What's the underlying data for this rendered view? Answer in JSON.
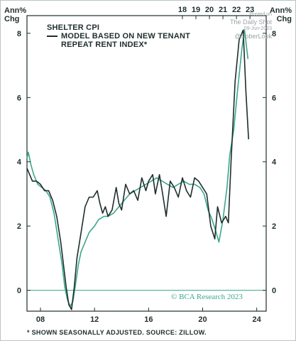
{
  "chart_data": {
    "type": "line",
    "unit_label_left": "Ann%\nChg",
    "unit_label_right": "Ann%\nChg",
    "x_range": [
      2007.0,
      2024.7
    ],
    "ylim": [
      -0.65,
      8.55
    ],
    "y_ticks": [
      0,
      2,
      4,
      6,
      8
    ],
    "x_ticks_top": [
      {
        "value": 2018.5,
        "label": "18"
      },
      {
        "value": 2019.5,
        "label": "19"
      },
      {
        "value": 2020.5,
        "label": "20"
      },
      {
        "value": 2021.5,
        "label": "21"
      },
      {
        "value": 2022.5,
        "label": "22"
      },
      {
        "value": 2023.5,
        "label": "23"
      }
    ],
    "x_ticks_bottom": [
      {
        "value": 2008,
        "label": "08"
      },
      {
        "value": 2012,
        "label": "12"
      },
      {
        "value": 2016,
        "label": "16"
      },
      {
        "value": 2020,
        "label": "20"
      },
      {
        "value": 2024,
        "label": "24"
      }
    ],
    "grid": false,
    "legend": {
      "line_entry": "MODEL BASED ON NEW TENANT",
      "line_entry_cont": "REPEAT RENT INDEX*",
      "text_entry": "SHELTER CPI"
    },
    "series": [
      {
        "name": "SHELTER CPI",
        "color": "#3aa88a",
        "axis": "bottom",
        "points": [
          [
            2007.0,
            4.1
          ],
          [
            2007.1,
            4.3
          ],
          [
            2007.3,
            3.9
          ],
          [
            2007.5,
            3.6
          ],
          [
            2007.8,
            3.3
          ],
          [
            2008.1,
            3.2
          ],
          [
            2008.4,
            3.1
          ],
          [
            2008.7,
            2.9
          ],
          [
            2009.0,
            2.4
          ],
          [
            2009.3,
            1.6
          ],
          [
            2009.6,
            0.8
          ],
          [
            2009.8,
            0.1
          ],
          [
            2010.0,
            -0.3
          ],
          [
            2010.2,
            -0.5
          ],
          [
            2010.4,
            -0.35
          ],
          [
            2010.6,
            0.2
          ],
          [
            2010.8,
            0.8
          ],
          [
            2011.0,
            1.2
          ],
          [
            2011.3,
            1.5
          ],
          [
            2011.6,
            1.8
          ],
          [
            2012.0,
            2.0
          ],
          [
            2012.3,
            2.2
          ],
          [
            2012.7,
            2.3
          ],
          [
            2013.0,
            2.3
          ],
          [
            2013.4,
            2.4
          ],
          [
            2013.8,
            2.6
          ],
          [
            2014.2,
            2.8
          ],
          [
            2014.6,
            3.0
          ],
          [
            2015.0,
            3.1
          ],
          [
            2015.4,
            3.2
          ],
          [
            2015.8,
            3.3
          ],
          [
            2016.2,
            3.4
          ],
          [
            2016.6,
            3.5
          ],
          [
            2017.0,
            3.4
          ],
          [
            2017.4,
            3.3
          ],
          [
            2017.8,
            3.2
          ],
          [
            2018.2,
            3.3
          ],
          [
            2018.6,
            3.4
          ],
          [
            2019.0,
            3.3
          ],
          [
            2019.4,
            3.3
          ],
          [
            2019.8,
            3.2
          ],
          [
            2020.1,
            3.0
          ],
          [
            2020.4,
            2.5
          ],
          [
            2020.7,
            2.2
          ],
          [
            2021.0,
            1.8
          ],
          [
            2021.2,
            1.5
          ],
          [
            2021.5,
            2.2
          ],
          [
            2021.8,
            3.2
          ],
          [
            2022.0,
            4.2
          ],
          [
            2022.3,
            5.0
          ],
          [
            2022.6,
            6.3
          ],
          [
            2022.9,
            7.5
          ],
          [
            2023.1,
            8.1
          ],
          [
            2023.35,
            7.2
          ]
        ]
      },
      {
        "name": "MODEL BASED ON NEW TENANT REPEAT RENT INDEX*",
        "color": "#1f2d2d",
        "axis": "bottom",
        "points": [
          [
            2007.0,
            3.8
          ],
          [
            2007.2,
            3.6
          ],
          [
            2007.4,
            3.4
          ],
          [
            2007.7,
            3.4
          ],
          [
            2008.0,
            3.3
          ],
          [
            2008.3,
            3.1
          ],
          [
            2008.6,
            3.1
          ],
          [
            2008.9,
            2.8
          ],
          [
            2009.2,
            2.3
          ],
          [
            2009.5,
            1.5
          ],
          [
            2009.7,
            0.8
          ],
          [
            2009.9,
            0.1
          ],
          [
            2010.1,
            -0.45
          ],
          [
            2010.3,
            -0.6
          ],
          [
            2010.5,
            0.1
          ],
          [
            2010.7,
            1.0
          ],
          [
            2011.0,
            1.8
          ],
          [
            2011.3,
            2.6
          ],
          [
            2011.6,
            2.9
          ],
          [
            2011.9,
            2.9
          ],
          [
            2012.2,
            3.1
          ],
          [
            2012.4,
            2.7
          ],
          [
            2012.6,
            2.4
          ],
          [
            2012.8,
            2.6
          ],
          [
            2013.0,
            2.3
          ],
          [
            2013.3,
            2.5
          ],
          [
            2013.6,
            3.2
          ],
          [
            2013.8,
            2.7
          ],
          [
            2014.0,
            2.5
          ],
          [
            2014.3,
            3.3
          ],
          [
            2014.6,
            3.0
          ],
          [
            2014.9,
            3.1
          ],
          [
            2015.2,
            2.8
          ],
          [
            2015.5,
            3.5
          ],
          [
            2015.8,
            3.1
          ],
          [
            2016.0,
            3.4
          ],
          [
            2016.3,
            3.6
          ],
          [
            2016.5,
            3.0
          ],
          [
            2016.8,
            3.6
          ],
          [
            2017.0,
            3.1
          ],
          [
            2017.3,
            2.3
          ],
          [
            2017.6,
            3.4
          ],
          [
            2017.9,
            3.2
          ],
          [
            2018.2,
            2.9
          ],
          [
            2018.5,
            3.5
          ],
          [
            2018.8,
            3.1
          ],
          [
            2019.1,
            2.9
          ],
          [
            2019.4,
            3.5
          ],
          [
            2019.7,
            3.4
          ],
          [
            2020.0,
            3.2
          ],
          [
            2020.3,
            3.0
          ],
          [
            2020.6,
            2.0
          ],
          [
            2020.9,
            1.6
          ],
          [
            2021.1,
            2.6
          ],
          [
            2021.4,
            2.1
          ],
          [
            2021.7,
            2.3
          ],
          [
            2021.9,
            2.1
          ],
          [
            2022.1,
            4.0
          ],
          [
            2022.4,
            6.5
          ],
          [
            2022.7,
            7.8
          ],
          [
            2023.0,
            8.1
          ],
          [
            2023.2,
            6.2
          ],
          [
            2023.4,
            4.7
          ]
        ]
      }
    ]
  },
  "watermark": {
    "line1": "Posted on",
    "line2": "The Daily Shot",
    "line3": "09-Jun-2023",
    "line4": "@SoberLook"
  },
  "credit": "© BCA Research 2023",
  "footnote": "*  SHOWN SEASONALLY ADJUSTED. SOURCE: ZILLOW.",
  "colors": {
    "teal": "#3aa88a",
    "dark": "#1f2d2d",
    "zero_line": "#3aa88a"
  }
}
